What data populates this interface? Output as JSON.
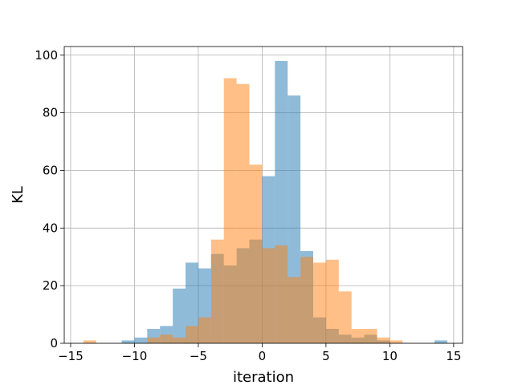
{
  "chart_data": {
    "type": "histogram",
    "title": "",
    "xlabel": "iteration",
    "ylabel": "KL",
    "xlim": [
      -15.5,
      15.7
    ],
    "ylim": [
      0,
      103
    ],
    "grid": true,
    "legend": "none",
    "x_ticks": [
      -15,
      -10,
      -5,
      0,
      5,
      10,
      15
    ],
    "x_tick_labels": [
      "−15",
      "−10",
      "−5",
      "0",
      "5",
      "10",
      "15"
    ],
    "y_ticks": [
      0,
      20,
      40,
      60,
      80,
      100
    ],
    "y_tick_labels": [
      "0",
      "20",
      "40",
      "60",
      "80",
      "100"
    ],
    "bin_width": 1.0,
    "series": [
      {
        "color": "#1f77b4",
        "opacity": 0.5,
        "bins": [
          {
            "x0": -11.0,
            "count": 1
          },
          {
            "x0": -10.0,
            "count": 2
          },
          {
            "x0": -9.0,
            "count": 5
          },
          {
            "x0": -8.0,
            "count": 6
          },
          {
            "x0": -7.0,
            "count": 19
          },
          {
            "x0": -6.0,
            "count": 28
          },
          {
            "x0": -5.0,
            "count": 26
          },
          {
            "x0": -4.0,
            "count": 31
          },
          {
            "x0": -3.0,
            "count": 27
          },
          {
            "x0": -2.0,
            "count": 33
          },
          {
            "x0": -1.0,
            "count": 36
          },
          {
            "x0": 0.0,
            "count": 58
          },
          {
            "x0": 1.0,
            "count": 98
          },
          {
            "x0": 2.0,
            "count": 86
          },
          {
            "x0": 3.0,
            "count": 32
          },
          {
            "x0": 4.0,
            "count": 9
          },
          {
            "x0": 5.0,
            "count": 5
          },
          {
            "x0": 6.0,
            "count": 3
          },
          {
            "x0": 7.0,
            "count": 2
          },
          {
            "x0": 8.0,
            "count": 3
          },
          {
            "x0": 9.0,
            "count": 1
          },
          {
            "x0": 13.5,
            "count": 1
          }
        ]
      },
      {
        "color": "#ff7f0e",
        "opacity": 0.5,
        "bins": [
          {
            "x0": -14.0,
            "count": 1
          },
          {
            "x0": -9.0,
            "count": 2
          },
          {
            "x0": -8.0,
            "count": 3
          },
          {
            "x0": -7.0,
            "count": 2
          },
          {
            "x0": -6.0,
            "count": 6
          },
          {
            "x0": -5.0,
            "count": 9
          },
          {
            "x0": -4.0,
            "count": 36
          },
          {
            "x0": -3.0,
            "count": 92
          },
          {
            "x0": -2.0,
            "count": 90
          },
          {
            "x0": -1.0,
            "count": 62
          },
          {
            "x0": 0.0,
            "count": 33
          },
          {
            "x0": 1.0,
            "count": 34
          },
          {
            "x0": 2.0,
            "count": 23
          },
          {
            "x0": 3.0,
            "count": 30
          },
          {
            "x0": 4.0,
            "count": 28
          },
          {
            "x0": 5.0,
            "count": 29
          },
          {
            "x0": 6.0,
            "count": 18
          },
          {
            "x0": 7.0,
            "count": 5
          },
          {
            "x0": 8.0,
            "count": 5
          },
          {
            "x0": 9.0,
            "count": 2
          },
          {
            "x0": 10.0,
            "count": 1
          }
        ]
      }
    ]
  }
}
